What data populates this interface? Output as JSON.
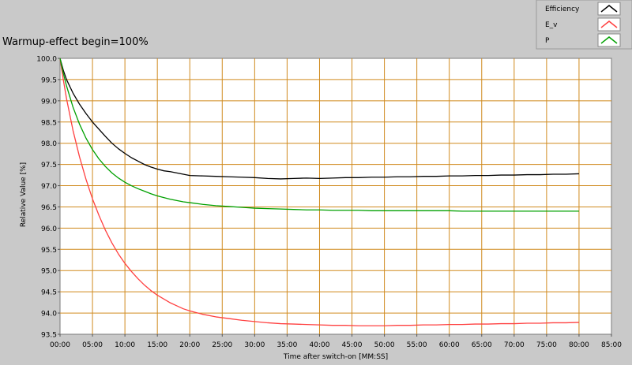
{
  "chart_data": {
    "type": "line",
    "title": "Warmup-effect begin=100%",
    "xlabel": "Time after switch-on [MM:SS]",
    "ylabel": "Relative Value [%]",
    "x_unit": "minutes",
    "xlim": [
      0,
      85
    ],
    "ylim": [
      93.5,
      100.0
    ],
    "grid": true,
    "legend_position": "top-right",
    "x_ticks": [
      {
        "value": 0,
        "label": "00:00"
      },
      {
        "value": 5,
        "label": "05:00"
      },
      {
        "value": 10,
        "label": "10:00"
      },
      {
        "value": 15,
        "label": "15:00"
      },
      {
        "value": 20,
        "label": "20:00"
      },
      {
        "value": 25,
        "label": "25:00"
      },
      {
        "value": 30,
        "label": "30:00"
      },
      {
        "value": 35,
        "label": "35:00"
      },
      {
        "value": 40,
        "label": "40:00"
      },
      {
        "value": 45,
        "label": "45:00"
      },
      {
        "value": 50,
        "label": "50:00"
      },
      {
        "value": 55,
        "label": "55:00"
      },
      {
        "value": 60,
        "label": "60:00"
      },
      {
        "value": 65,
        "label": "65:00"
      },
      {
        "value": 70,
        "label": "70:00"
      },
      {
        "value": 75,
        "label": "75:00"
      },
      {
        "value": 80,
        "label": "80:00"
      },
      {
        "value": 85,
        "label": "85:00"
      }
    ],
    "y_ticks": [
      {
        "value": 100.0,
        "label": "100.0"
      },
      {
        "value": 99.5,
        "label": "99.5"
      },
      {
        "value": 99.0,
        "label": "99.0"
      },
      {
        "value": 98.5,
        "label": "98.5"
      },
      {
        "value": 98.0,
        "label": "98.0"
      },
      {
        "value": 97.5,
        "label": "97.5"
      },
      {
        "value": 97.0,
        "label": "97.0"
      },
      {
        "value": 96.5,
        "label": "96.5"
      },
      {
        "value": 96.0,
        "label": "96.0"
      },
      {
        "value": 95.5,
        "label": "95.5"
      },
      {
        "value": 95.0,
        "label": "95.0"
      },
      {
        "value": 94.5,
        "label": "94.5"
      },
      {
        "value": 94.0,
        "label": "94.0"
      },
      {
        "value": 93.5,
        "label": "93.5"
      }
    ],
    "series": [
      {
        "name": "Efficiency",
        "color": "#000000",
        "x": [
          0,
          0.5,
          1,
          2,
          3,
          4,
          5,
          6,
          7,
          8,
          9,
          10,
          11,
          12,
          13,
          14,
          15,
          16,
          17,
          18,
          19,
          20,
          22,
          24,
          26,
          28,
          30,
          32,
          34,
          36,
          38,
          40,
          42,
          44,
          46,
          48,
          50,
          52,
          54,
          56,
          58,
          60,
          62,
          64,
          66,
          68,
          70,
          72,
          74,
          76,
          78,
          80
        ],
        "y": [
          100.0,
          99.72,
          99.5,
          99.18,
          98.92,
          98.7,
          98.5,
          98.33,
          98.16,
          98.0,
          97.87,
          97.76,
          97.66,
          97.58,
          97.5,
          97.44,
          97.39,
          97.35,
          97.33,
          97.3,
          97.27,
          97.24,
          97.23,
          97.22,
          97.21,
          97.2,
          97.19,
          97.17,
          97.16,
          97.17,
          97.18,
          97.17,
          97.18,
          97.19,
          97.19,
          97.2,
          97.2,
          97.21,
          97.21,
          97.22,
          97.22,
          97.23,
          97.23,
          97.24,
          97.24,
          97.25,
          97.25,
          97.26,
          97.26,
          97.27,
          97.27,
          97.28
        ]
      },
      {
        "name": "E_v",
        "color": "#ff4040",
        "x": [
          0,
          0.5,
          1,
          2,
          3,
          4,
          5,
          6,
          7,
          8,
          9,
          10,
          11,
          12,
          13,
          14,
          15,
          16,
          17,
          18,
          19,
          20,
          22,
          24,
          26,
          28,
          30,
          32,
          34,
          36,
          38,
          40,
          42,
          44,
          46,
          48,
          50,
          52,
          54,
          56,
          58,
          60,
          62,
          64,
          66,
          68,
          70,
          72,
          74,
          76,
          78,
          80
        ],
        "y": [
          100.0,
          99.5,
          99.05,
          98.3,
          97.68,
          97.15,
          96.69,
          96.3,
          95.95,
          95.65,
          95.39,
          95.17,
          94.98,
          94.81,
          94.66,
          94.53,
          94.42,
          94.33,
          94.24,
          94.17,
          94.1,
          94.05,
          93.97,
          93.91,
          93.87,
          93.83,
          93.8,
          93.77,
          93.75,
          93.74,
          93.73,
          93.72,
          93.71,
          93.71,
          93.7,
          93.7,
          93.7,
          93.71,
          93.71,
          93.72,
          93.72,
          93.73,
          93.73,
          93.74,
          93.74,
          93.75,
          93.75,
          93.76,
          93.76,
          93.77,
          93.77,
          93.78
        ]
      },
      {
        "name": "P",
        "color": "#00a000",
        "x": [
          0,
          0.5,
          1,
          2,
          3,
          4,
          5,
          6,
          7,
          8,
          9,
          10,
          11,
          12,
          13,
          14,
          15,
          16,
          17,
          18,
          19,
          20,
          22,
          24,
          26,
          28,
          30,
          32,
          34,
          36,
          38,
          40,
          42,
          44,
          46,
          48,
          50,
          52,
          54,
          56,
          58,
          60,
          62,
          64,
          66,
          68,
          70,
          72,
          74,
          76,
          78,
          80
        ],
        "y": [
          100.0,
          99.65,
          99.35,
          98.85,
          98.45,
          98.12,
          97.85,
          97.63,
          97.45,
          97.3,
          97.18,
          97.08,
          97.0,
          96.93,
          96.87,
          96.81,
          96.76,
          96.72,
          96.68,
          96.65,
          96.62,
          96.6,
          96.56,
          96.53,
          96.51,
          96.49,
          96.47,
          96.46,
          96.45,
          96.44,
          96.43,
          96.43,
          96.42,
          96.42,
          96.42,
          96.41,
          96.41,
          96.41,
          96.41,
          96.41,
          96.41,
          96.41,
          96.4,
          96.4,
          96.4,
          96.4,
          96.4,
          96.4,
          96.4,
          96.4,
          96.4,
          96.4
        ]
      }
    ]
  }
}
